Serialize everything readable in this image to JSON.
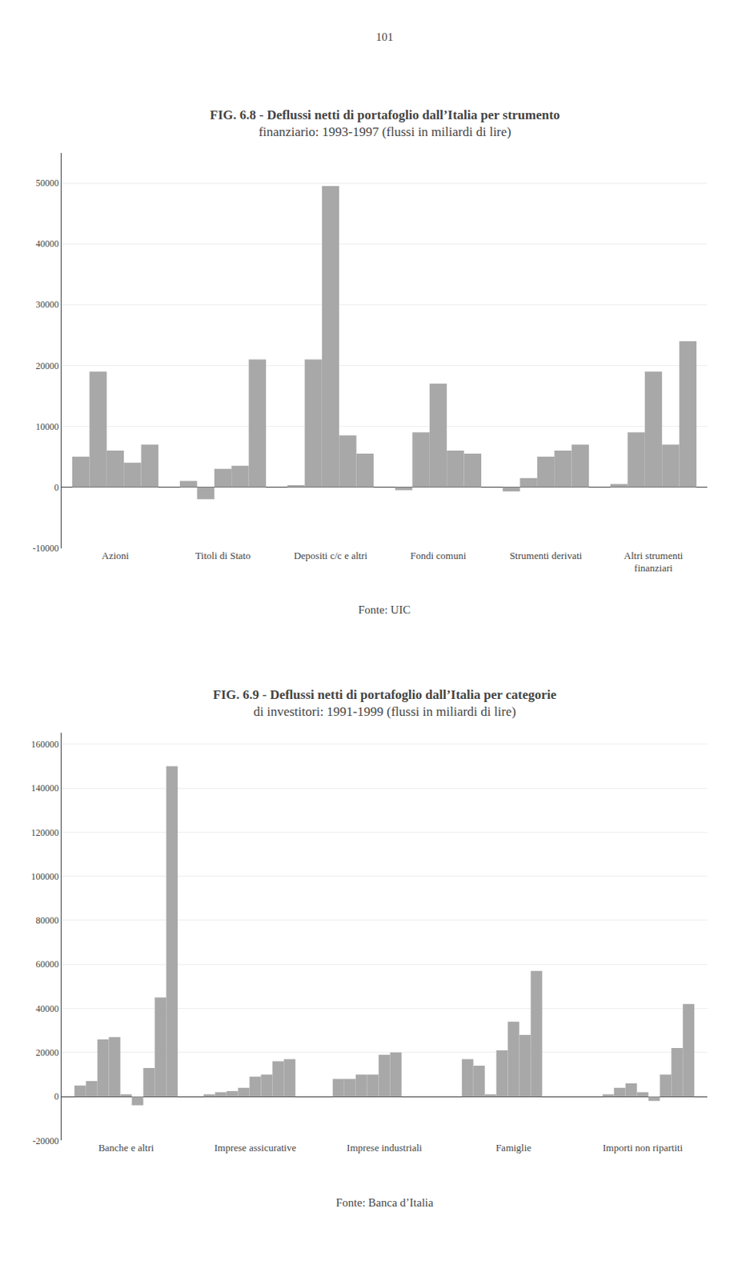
{
  "annotations": [
    "101"
  ],
  "chart_data": [
    {
      "type": "bar",
      "title": "FIG. 6.8 - Deflussi netti di portafoglio dall’Italia per strumento\nfinanziario: 1993-1997 (flussi in miliardi di lire)",
      "categories": [
        "Azioni",
        "Titoli di Stato",
        "Depositi c/c e altri",
        "Fondi comuni",
        "Strumenti derivati",
        "Altri strumenti\nfinanziari"
      ],
      "series": [
        {
          "values": [
            5000,
            1000,
            300,
            -500,
            -700,
            500
          ]
        },
        {
          "values": [
            19000,
            -2000,
            21000,
            9000,
            1500,
            9000
          ]
        },
        {
          "values": [
            6000,
            3000,
            49500,
            17000,
            5000,
            19000
          ]
        },
        {
          "values": [
            4000,
            3500,
            8500,
            6000,
            6000,
            7000
          ]
        },
        {
          "values": [
            7000,
            21000,
            5500,
            5500,
            7000,
            24000
          ]
        }
      ],
      "color": "#a8a8a8",
      "ylim": [
        -10000,
        55000
      ],
      "yticks": [
        -10000,
        0,
        10000,
        20000,
        30000,
        40000,
        50000
      ],
      "grid": true,
      "annotations": [
        "Fonte: UIC"
      ]
    },
    {
      "type": "bar",
      "title": "FIG. 6.9 - Deflussi netti di portafoglio dall’Italia per categorie\ndi investitori: 1991-1999 (flussi in miliardi di lire)",
      "categories": [
        "Banche e altri",
        "Imprese assicurative",
        "Imprese industriali",
        "Famiglie",
        "Importi non ripartiti"
      ],
      "series": [
        {
          "values": [
            5000,
            1000,
            8000,
            17000,
            0
          ]
        },
        {
          "values": [
            7000,
            2000,
            8000,
            14000,
            1000
          ]
        },
        {
          "values": [
            26000,
            2500,
            10000,
            1000,
            4000
          ]
        },
        {
          "values": [
            27000,
            4000,
            10000,
            21000,
            6000
          ]
        },
        {
          "values": [
            1000,
            9000,
            19000,
            34000,
            2000
          ]
        },
        {
          "values": [
            -4000,
            10000,
            20000,
            28000,
            -2000
          ]
        },
        {
          "values": [
            13000,
            16000,
            0,
            57000,
            10000
          ]
        },
        {
          "values": [
            45000,
            17000,
            0,
            0,
            22000
          ]
        },
        {
          "values": [
            150000,
            0,
            0,
            0,
            42000
          ]
        }
      ],
      "color": "#a8a8a8",
      "ylim": [
        -20000,
        165000
      ],
      "yticks": [
        -20000,
        0,
        20000,
        40000,
        60000,
        80000,
        100000,
        120000,
        140000,
        160000
      ],
      "grid": true,
      "annotations": [
        "Fonte: Banca d’Italia"
      ]
    }
  ]
}
